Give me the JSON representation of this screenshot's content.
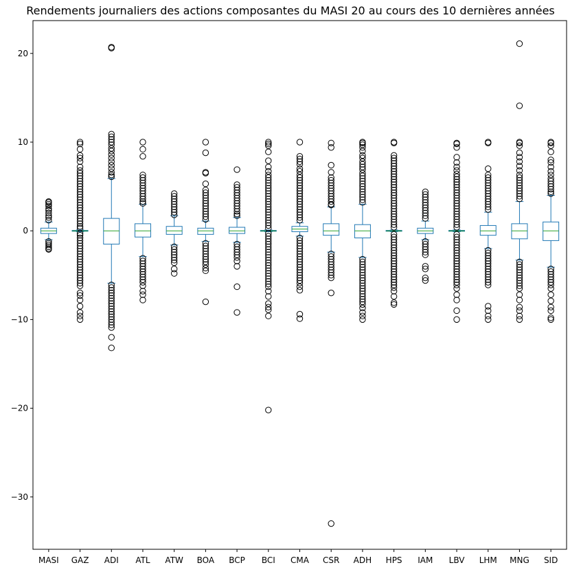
{
  "chart_data": {
    "type": "box",
    "title": "Rendements journaliers des actions composantes du MASI 20 au cours des 10 dernières années",
    "xlabel": "",
    "ylabel": "",
    "ylim": [
      -35.9,
      23.7
    ],
    "yticks": [
      20,
      10,
      0,
      -10,
      -20,
      -30
    ],
    "ytick_labels": [
      "20",
      "10",
      "0",
      "−10",
      "−20",
      "−30"
    ],
    "grid": false,
    "legend": "none",
    "colors": {
      "box": "#1f77b4",
      "median": "#2ca02c",
      "flier": "#000000",
      "axes": "#000000"
    },
    "categories": [
      "MASI",
      "GAZ",
      "ADI",
      "ATL",
      "ATW",
      "BOA",
      "BCP",
      "BCI",
      "CMA",
      "CSR",
      "ADH",
      "HPS",
      "IAM",
      "LBV",
      "LHM",
      "MNG",
      "SID"
    ],
    "boxes": [
      {
        "q1": -0.3,
        "median": 0.0,
        "q3": 0.3,
        "whisker_low": -1.0,
        "whisker_high": 1.0,
        "fliers": [
          1.2,
          1.5,
          1.7,
          2.0,
          2.3,
          2.5,
          2.8,
          3.0,
          3.2,
          3.3,
          -1.2,
          -1.4,
          -1.6,
          -1.8,
          -2.0,
          -2.1
        ]
      },
      {
        "q1": -0.05,
        "median": 0.0,
        "q3": 0.05,
        "whisker_low": -0.1,
        "whisker_high": 0.1,
        "fliers": [
          10.0,
          9.8,
          9.2,
          8.5,
          8.2,
          7.8,
          7.2,
          6.8,
          6.5,
          6.2,
          5.9,
          5.6,
          5.3,
          5.0,
          4.7,
          4.4,
          4.1,
          3.8,
          3.5,
          3.2,
          2.9,
          2.6,
          2.3,
          2.0,
          1.7,
          1.4,
          1.1,
          0.8,
          0.5,
          0.3,
          -0.3,
          -0.5,
          -0.8,
          -1.1,
          -1.4,
          -1.7,
          -2.0,
          -2.3,
          -2.6,
          -2.9,
          -3.2,
          -3.5,
          -3.8,
          -4.1,
          -4.4,
          -4.7,
          -5.0,
          -5.3,
          -5.6,
          -5.9,
          -6.2,
          -7.0,
          -7.3,
          -7.8,
          -8.5,
          -9.2,
          -9.6,
          -10.0
        ]
      },
      {
        "q1": -1.5,
        "median": 0.0,
        "q3": 1.4,
        "whisker_low": -5.9,
        "whisker_high": 5.9,
        "fliers": [
          20.7,
          20.6,
          10.9,
          10.6,
          10.3,
          10.0,
          9.7,
          9.3,
          9.0,
          8.6,
          8.2,
          7.8,
          7.4,
          7.0,
          6.6,
          6.3,
          6.1,
          -6.1,
          -6.4,
          -6.7,
          -7.0,
          -7.3,
          -7.6,
          -7.9,
          -8.2,
          -8.5,
          -8.8,
          -9.1,
          -9.4,
          -9.7,
          -10.0,
          -10.3,
          -10.6,
          -10.9,
          -12.0,
          -13.2
        ]
      },
      {
        "q1": -0.7,
        "median": 0.0,
        "q3": 0.8,
        "whisker_low": -2.9,
        "whisker_high": 3.0,
        "fliers": [
          10.0,
          9.2,
          8.4,
          6.3,
          6.0,
          5.7,
          5.4,
          5.1,
          4.8,
          4.5,
          4.2,
          3.9,
          3.6,
          3.3,
          3.1,
          -3.1,
          -3.4,
          -3.7,
          -4.0,
          -4.3,
          -4.6,
          -4.9,
          -5.2,
          -5.5,
          -5.8,
          -6.2,
          -6.8,
          -7.2,
          -7.8
        ]
      },
      {
        "q1": -0.4,
        "median": 0.0,
        "q3": 0.5,
        "whisker_low": -1.6,
        "whisker_high": 1.7,
        "fliers": [
          4.2,
          3.9,
          3.6,
          3.3,
          3.0,
          2.7,
          2.4,
          2.1,
          1.8,
          -1.8,
          -2.1,
          -2.4,
          -2.7,
          -3.0,
          -3.3,
          -3.6,
          -4.3,
          -4.8
        ]
      },
      {
        "q1": -0.4,
        "median": 0.0,
        "q3": 0.3,
        "whisker_low": -1.2,
        "whisker_high": 1.1,
        "fliers": [
          10.0,
          8.8,
          6.6,
          6.5,
          5.3,
          4.6,
          4.3,
          4.0,
          3.7,
          3.4,
          3.1,
          2.8,
          2.5,
          2.2,
          1.9,
          1.6,
          1.3,
          -1.4,
          -1.7,
          -2.0,
          -2.3,
          -2.6,
          -2.9,
          -3.2,
          -3.5,
          -3.8,
          -4.2,
          -4.5,
          -8.0
        ]
      },
      {
        "q1": -0.3,
        "median": 0.0,
        "q3": 0.4,
        "whisker_low": -1.3,
        "whisker_high": 1.5,
        "fliers": [
          6.9,
          5.2,
          4.9,
          4.6,
          4.3,
          4.0,
          3.7,
          3.4,
          3.1,
          2.8,
          2.5,
          2.2,
          1.9,
          1.7,
          -1.5,
          -1.8,
          -2.1,
          -2.4,
          -2.7,
          -3.0,
          -3.4,
          -4.0,
          -6.3,
          -9.2
        ]
      },
      {
        "q1": -0.05,
        "median": 0.0,
        "q3": 0.05,
        "whisker_low": -0.1,
        "whisker_high": 0.1,
        "fliers": [
          10.0,
          9.8,
          9.6,
          8.9,
          7.9,
          7.2,
          6.7,
          6.3,
          6.0,
          5.7,
          5.4,
          5.1,
          4.8,
          4.5,
          4.2,
          3.9,
          3.6,
          3.3,
          3.0,
          2.7,
          2.4,
          2.1,
          1.8,
          1.5,
          1.2,
          0.9,
          0.6,
          0.3,
          -0.3,
          -0.6,
          -0.9,
          -1.2,
          -1.5,
          -1.8,
          -2.1,
          -2.4,
          -2.7,
          -3.0,
          -3.3,
          -3.6,
          -3.9,
          -4.2,
          -4.5,
          -4.8,
          -5.1,
          -5.4,
          -5.7,
          -6.0,
          -6.3,
          -6.8,
          -7.4,
          -8.2,
          -8.6,
          -8.9,
          -9.6,
          -20.2
        ]
      },
      {
        "q1": -0.1,
        "median": 0.2,
        "q3": 0.5,
        "whisker_low": -0.6,
        "whisker_high": 0.9,
        "fliers": [
          10.0,
          8.4,
          8.1,
          7.8,
          7.5,
          7.0,
          6.7,
          6.3,
          6.0,
          5.7,
          5.4,
          5.1,
          4.8,
          4.5,
          4.2,
          3.9,
          3.6,
          3.3,
          3.0,
          2.7,
          2.4,
          2.1,
          1.8,
          1.5,
          1.2,
          -0.8,
          -1.1,
          -1.4,
          -1.7,
          -2.0,
          -2.3,
          -2.6,
          -2.9,
          -3.2,
          -3.5,
          -3.8,
          -4.1,
          -4.4,
          -4.7,
          -5.0,
          -5.3,
          -5.6,
          -5.9,
          -6.3,
          -6.7,
          -9.4,
          -9.9
        ]
      },
      {
        "q1": -0.5,
        "median": 0.0,
        "q3": 0.8,
        "whisker_low": -2.4,
        "whisker_high": 2.7,
        "fliers": [
          9.9,
          9.4,
          7.4,
          6.6,
          6.0,
          5.7,
          5.4,
          5.1,
          4.8,
          4.5,
          4.2,
          3.9,
          3.6,
          3.3,
          3.0,
          2.9,
          -2.6,
          -2.9,
          -3.2,
          -3.5,
          -3.8,
          -4.1,
          -4.4,
          -4.7,
          -5.0,
          -5.3,
          -7.0,
          -33.0
        ]
      },
      {
        "q1": -0.8,
        "median": 0.0,
        "q3": 0.7,
        "whisker_low": -3.0,
        "whisker_high": 3.0,
        "fliers": [
          10.0,
          9.9,
          9.7,
          9.4,
          9.0,
          8.5,
          8.2,
          7.8,
          7.5,
          7.2,
          6.9,
          6.5,
          6.2,
          5.9,
          5.6,
          5.3,
          5.0,
          4.7,
          4.4,
          4.1,
          3.8,
          3.5,
          3.2,
          -3.2,
          -3.5,
          -3.8,
          -4.1,
          -4.4,
          -4.7,
          -5.0,
          -5.3,
          -5.6,
          -5.9,
          -6.2,
          -6.5,
          -6.8,
          -7.1,
          -7.4,
          -7.7,
          -8.0,
          -8.3,
          -8.7,
          -9.2,
          -9.6,
          -10.0
        ]
      },
      {
        "q1": -0.05,
        "median": 0.0,
        "q3": 0.05,
        "whisker_low": -0.1,
        "whisker_high": 0.1,
        "fliers": [
          10.0,
          9.9,
          8.5,
          8.2,
          7.9,
          7.6,
          7.3,
          7.0,
          6.7,
          6.4,
          6.1,
          5.8,
          5.5,
          5.2,
          4.9,
          4.6,
          4.3,
          4.0,
          3.7,
          3.4,
          3.1,
          2.8,
          2.5,
          2.2,
          1.9,
          1.6,
          1.3,
          1.0,
          0.7,
          0.4,
          -0.4,
          -0.7,
          -1.0,
          -1.3,
          -1.6,
          -1.9,
          -2.2,
          -2.5,
          -2.8,
          -3.1,
          -3.4,
          -3.7,
          -4.0,
          -4.3,
          -4.6,
          -4.9,
          -5.2,
          -5.5,
          -5.8,
          -6.1,
          -6.4,
          -6.8,
          -7.4,
          -8.1,
          -8.3
        ]
      },
      {
        "q1": -0.3,
        "median": 0.0,
        "q3": 0.3,
        "whisker_low": -1.0,
        "whisker_high": 1.1,
        "fliers": [
          4.4,
          4.1,
          3.8,
          3.5,
          3.2,
          2.9,
          2.6,
          2.3,
          2.0,
          1.7,
          1.4,
          -1.2,
          -1.5,
          -1.8,
          -2.1,
          -2.4,
          -2.7,
          -4.0,
          -4.3,
          -5.3,
          -5.6
        ]
      },
      {
        "q1": -0.05,
        "median": 0.0,
        "q3": 0.05,
        "whisker_low": -0.1,
        "whisker_high": 0.1,
        "fliers": [
          9.9,
          9.8,
          9.4,
          8.3,
          7.7,
          7.2,
          6.8,
          6.4,
          6.1,
          5.8,
          5.5,
          5.2,
          4.9,
          4.6,
          4.3,
          4.0,
          3.7,
          3.4,
          3.1,
          2.8,
          2.5,
          2.2,
          1.9,
          1.6,
          1.3,
          1.0,
          0.7,
          0.4,
          -0.4,
          -0.7,
          -1.0,
          -1.3,
          -1.6,
          -1.9,
          -2.2,
          -2.5,
          -2.8,
          -3.1,
          -3.4,
          -3.7,
          -4.0,
          -4.3,
          -4.6,
          -4.9,
          -5.2,
          -5.5,
          -5.8,
          -6.1,
          -6.5,
          -7.2,
          -7.8,
          -9.0,
          -10.0
        ]
      },
      {
        "q1": -0.5,
        "median": 0.0,
        "q3": 0.6,
        "whisker_low": -2.0,
        "whisker_high": 2.1,
        "fliers": [
          10.0,
          9.9,
          7.0,
          6.3,
          6.0,
          5.7,
          5.4,
          5.1,
          4.8,
          4.5,
          4.2,
          3.9,
          3.6,
          3.3,
          3.0,
          2.7,
          2.4,
          -2.2,
          -2.5,
          -2.8,
          -3.1,
          -3.4,
          -3.7,
          -4.0,
          -4.3,
          -4.6,
          -4.9,
          -5.2,
          -5.5,
          -5.8,
          -6.1,
          -8.5,
          -9.0,
          -9.6,
          -10.0
        ]
      },
      {
        "q1": -0.9,
        "median": 0.0,
        "q3": 0.8,
        "whisker_low": -3.3,
        "whisker_high": 3.3,
        "fliers": [
          21.1,
          14.1,
          10.0,
          9.9,
          9.6,
          8.8,
          8.3,
          7.8,
          7.3,
          6.8,
          6.3,
          6.0,
          5.7,
          5.4,
          5.1,
          4.8,
          4.5,
          4.2,
          3.9,
          3.6,
          -3.5,
          -3.8,
          -4.1,
          -4.4,
          -4.7,
          -5.0,
          -5.3,
          -5.6,
          -5.9,
          -6.2,
          -6.5,
          -7.2,
          -7.8,
          -8.6,
          -9.0,
          -9.6,
          -10.0
        ]
      },
      {
        "q1": -1.1,
        "median": 0.0,
        "q3": 1.0,
        "whisker_low": -4.1,
        "whisker_high": 4.0,
        "fliers": [
          10.0,
          9.9,
          9.6,
          8.9,
          8.0,
          7.7,
          7.2,
          6.7,
          6.3,
          5.9,
          5.6,
          5.3,
          5.0,
          4.7,
          4.4,
          4.2,
          -4.3,
          -4.6,
          -4.9,
          -5.2,
          -5.5,
          -5.8,
          -6.1,
          -6.5,
          -7.2,
          -7.9,
          -8.6,
          -9.0,
          -9.8,
          -10.0
        ]
      }
    ]
  }
}
